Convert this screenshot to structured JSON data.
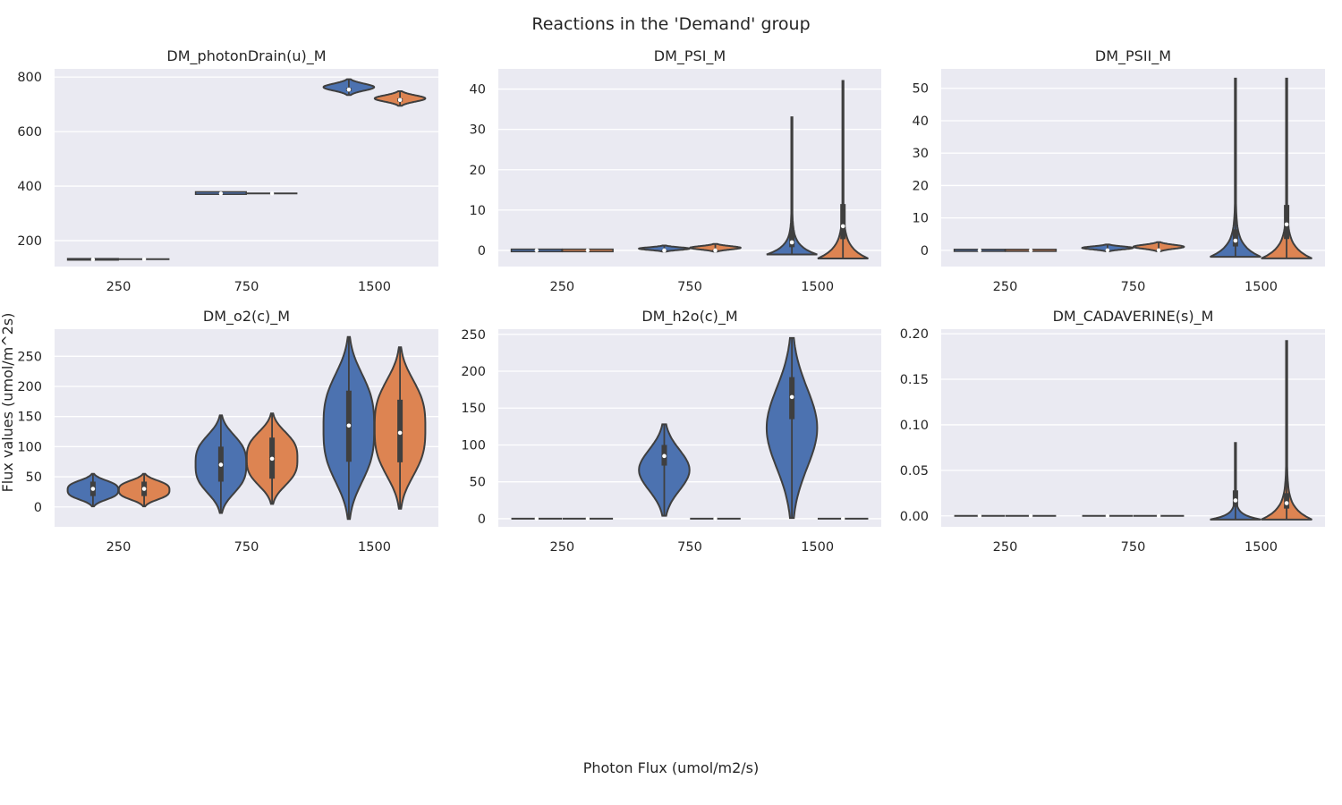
{
  "figure": {
    "title": "Reactions in the 'Demand' group",
    "xlabel": "Photon Flux (umol/m2/s)",
    "ylabel": "Flux values (umol/m^2s)"
  },
  "colors": {
    "series_a": "#4c72b0",
    "series_b": "#dd8452",
    "edge": "#3f3f3f",
    "background": "#eaeaf2",
    "grid": "#ffffff"
  },
  "chart_data": [
    {
      "type": "violin",
      "title": "DM_photonDrain(u)_M",
      "categories": [
        "250",
        "750",
        "1500"
      ],
      "ylim": [
        105,
        830
      ],
      "yticks": [
        200,
        400,
        600,
        800
      ],
      "tick_decimals": 0,
      "series": [
        {
          "violins": [
            {
              "min": 129,
              "max": 134,
              "q1": 130,
              "median": 131,
              "q3": 132,
              "shape": "flat"
            },
            {
              "min": 370,
              "max": 379,
              "q1": 372,
              "median": 373,
              "q3": 376,
              "shape": "flat"
            },
            {
              "min": 734,
              "max": 792,
              "q1": 748,
              "median": 754,
              "q3": 760,
              "shape": "normal"
            }
          ]
        },
        {
          "violins": [
            {
              "min": 130,
              "max": 133,
              "q1": 131,
              "median": 132,
              "q3": 132,
              "shape": "flat"
            },
            {
              "min": 371,
              "max": 375,
              "q1": 372,
              "median": 373,
              "q3": 374,
              "shape": "flat"
            },
            {
              "min": 695,
              "max": 748,
              "q1": 710,
              "median": 716,
              "q3": 722,
              "shape": "normal"
            }
          ]
        }
      ]
    },
    {
      "type": "violin",
      "title": "DM_PSI_M",
      "categories": [
        "250",
        "750",
        "1500"
      ],
      "ylim": [
        -4,
        45
      ],
      "yticks": [
        0,
        10,
        20,
        30,
        40
      ],
      "tick_decimals": 0,
      "series": [
        {
          "violins": [
            {
              "min": -0.3,
              "max": 0.3,
              "q1": -0.1,
              "median": 0,
              "q3": 0.1,
              "shape": "flat"
            },
            {
              "min": -0.3,
              "max": 1.2,
              "q1": -0.1,
              "median": 0,
              "q3": 0.2,
              "shape": "flat"
            },
            {
              "min": -1,
              "max": 33,
              "q1": 0.8,
              "median": 2,
              "q3": 5,
              "shape": "skew"
            }
          ]
        },
        {
          "violins": [
            {
              "min": -0.3,
              "max": 0.3,
              "q1": -0.1,
              "median": 0,
              "q3": 0.1,
              "shape": "flat"
            },
            {
              "min": -0.3,
              "max": 1.6,
              "q1": -0.1,
              "median": 0,
              "q3": 0.2,
              "shape": "flat"
            },
            {
              "min": -2,
              "max": 42,
              "q1": 2.8,
              "median": 6,
              "q3": 11.5,
              "shape": "skew"
            }
          ]
        }
      ]
    },
    {
      "type": "violin",
      "title": "DM_PSII_M",
      "categories": [
        "250",
        "750",
        "1500"
      ],
      "ylim": [
        -5,
        56
      ],
      "yticks": [
        0,
        10,
        20,
        30,
        40,
        50
      ],
      "tick_decimals": 0,
      "series": [
        {
          "violins": [
            {
              "min": -0.3,
              "max": 0.3,
              "q1": -0.1,
              "median": 0,
              "q3": 0.1,
              "shape": "flat"
            },
            {
              "min": -0.3,
              "max": 1.8,
              "q1": -0.1,
              "median": 0,
              "q3": 0.2,
              "shape": "flat"
            },
            {
              "min": -2,
              "max": 53,
              "q1": 1.2,
              "median": 3,
              "q3": 6.5,
              "shape": "skew"
            }
          ]
        },
        {
          "violins": [
            {
              "min": -0.3,
              "max": 0.3,
              "q1": -0.1,
              "median": 0,
              "q3": 0.1,
              "shape": "flat"
            },
            {
              "min": -0.3,
              "max": 2.5,
              "q1": -0.1,
              "median": 0,
              "q3": 0.2,
              "shape": "flat"
            },
            {
              "min": -2.5,
              "max": 53,
              "q1": 3.5,
              "median": 8,
              "q3": 14,
              "shape": "skew"
            }
          ]
        }
      ]
    },
    {
      "type": "violin",
      "title": "DM_o2(c)_M",
      "categories": [
        "250",
        "750",
        "1500"
      ],
      "ylim": [
        -33,
        295
      ],
      "yticks": [
        0,
        50,
        100,
        150,
        200,
        250
      ],
      "tick_decimals": 0,
      "series": [
        {
          "violins": [
            {
              "min": 1,
              "max": 55,
              "q1": 18,
              "median": 30,
              "q3": 42,
              "shape": "wide"
            },
            {
              "min": -10,
              "max": 152,
              "q1": 42,
              "median": 70,
              "q3": 100,
              "shape": "wide"
            },
            {
              "min": -20,
              "max": 282,
              "q1": 75,
              "median": 135,
              "q3": 193,
              "shape": "wide"
            }
          ]
        },
        {
          "violins": [
            {
              "min": 1,
              "max": 55,
              "q1": 18,
              "median": 30,
              "q3": 42,
              "shape": "wide"
            },
            {
              "min": 5,
              "max": 155,
              "q1": 47,
              "median": 80,
              "q3": 115,
              "shape": "wide"
            },
            {
              "min": -3,
              "max": 265,
              "q1": 74,
              "median": 123,
              "q3": 178,
              "shape": "wide"
            }
          ]
        }
      ]
    },
    {
      "type": "violin",
      "title": "DM_h2o(c)_M",
      "categories": [
        "250",
        "750",
        "1500"
      ],
      "ylim": [
        -11,
        257
      ],
      "yticks": [
        0,
        50,
        100,
        150,
        200,
        250
      ],
      "tick_decimals": 0,
      "series": [
        {
          "violins": [
            {
              "min": 0,
              "max": 0,
              "q1": 0,
              "median": 0,
              "q3": 0,
              "shape": "flat"
            },
            {
              "min": 4,
              "max": 128,
              "q1": 72,
              "median": 85,
              "q3": 100,
              "shape": "normal"
            },
            {
              "min": 1,
              "max": 245,
              "q1": 135,
              "median": 165,
              "q3": 192,
              "shape": "normal"
            }
          ]
        },
        {
          "violins": [
            {
              "min": 0,
              "max": 0,
              "q1": 0,
              "median": 0,
              "q3": 0,
              "shape": "flat"
            },
            {
              "min": 0,
              "max": 0,
              "q1": 0,
              "median": 0,
              "q3": 0,
              "shape": "flat"
            },
            {
              "min": 0,
              "max": 0,
              "q1": 0,
              "median": 0,
              "q3": 0,
              "shape": "flat"
            }
          ]
        }
      ]
    },
    {
      "type": "violin",
      "title": "DM_CADAVERINE(s)_M",
      "categories": [
        "250",
        "750",
        "1500"
      ],
      "ylim": [
        -0.012,
        0.205
      ],
      "yticks": [
        0.0,
        0.05,
        0.1,
        0.15,
        0.2
      ],
      "tick_decimals": 2,
      "series": [
        {
          "violins": [
            {
              "min": 0,
              "max": 0,
              "q1": 0,
              "median": 0,
              "q3": 0,
              "shape": "flat"
            },
            {
              "min": 0,
              "max": 0,
              "q1": 0,
              "median": 0,
              "q3": 0,
              "shape": "flat"
            },
            {
              "min": -0.004,
              "max": 0.08,
              "q1": 0.01,
              "median": 0.017,
              "q3": 0.028,
              "shape": "skew"
            }
          ]
        },
        {
          "violins": [
            {
              "min": 0,
              "max": 0,
              "q1": 0,
              "median": 0,
              "q3": 0,
              "shape": "flat"
            },
            {
              "min": 0,
              "max": 0,
              "q1": 0,
              "median": 0,
              "q3": 0,
              "shape": "flat"
            },
            {
              "min": -0.004,
              "max": 0.192,
              "q1": 0.008,
              "median": 0.014,
              "q3": 0.025,
              "shape": "skew"
            }
          ]
        }
      ]
    }
  ]
}
